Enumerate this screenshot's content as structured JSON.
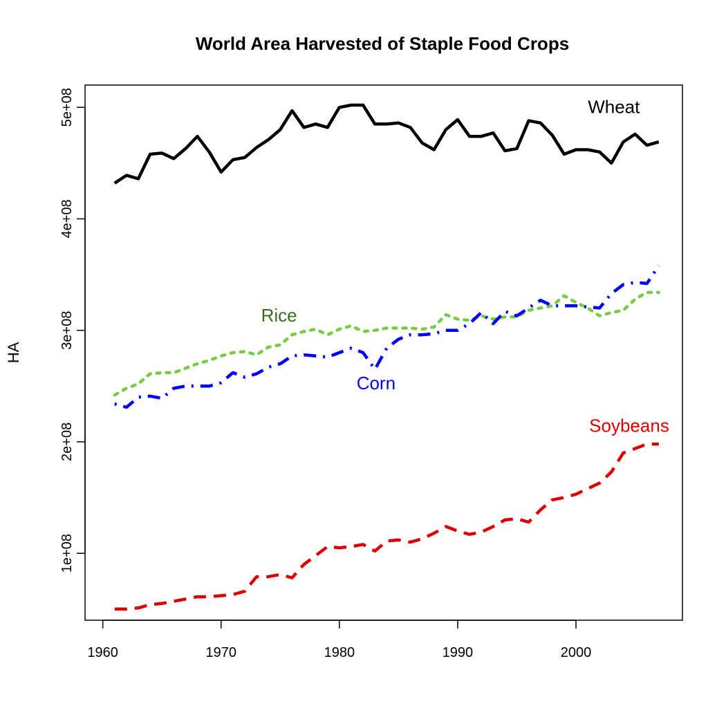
{
  "chart_data": {
    "type": "line",
    "title": "World Area Harvested of Staple Food Crops",
    "xlabel": "",
    "ylabel": "HA",
    "xlim": [
      1958.5,
      2009
    ],
    "ylim": [
      40000000,
      520000000
    ],
    "xticks": [
      1960,
      1970,
      1980,
      1990,
      2000
    ],
    "xtick_labels": [
      "1960",
      "1970",
      "1980",
      "1990",
      "2000"
    ],
    "yticks": [
      100000000,
      200000000,
      300000000,
      400000000,
      500000000
    ],
    "ytick_labels": [
      "1e+08",
      "2e+08",
      "3e+08",
      "4e+08",
      "5e+08"
    ],
    "grid": false,
    "x": [
      1961,
      1962,
      1963,
      1964,
      1965,
      1966,
      1967,
      1968,
      1969,
      1970,
      1971,
      1972,
      1973,
      1974,
      1975,
      1976,
      1977,
      1978,
      1979,
      1980,
      1981,
      1982,
      1983,
      1984,
      1985,
      1986,
      1987,
      1988,
      1989,
      1990,
      1991,
      1992,
      1993,
      1994,
      1995,
      1996,
      1997,
      1998,
      1999,
      2000,
      2001,
      2002,
      2003,
      2004,
      2005,
      2006,
      2007
    ],
    "series": [
      {
        "name": "Wheat",
        "label": "Wheat",
        "color": "#000000",
        "dash": "solid",
        "label_x": 2003.2,
        "label_y": 495000000,
        "values": [
          432000000,
          439000000,
          436000000,
          458000000,
          459000000,
          454000000,
          463000000,
          474000000,
          460000000,
          442000000,
          453000000,
          455000000,
          464000000,
          471000000,
          480000000,
          497000000,
          482000000,
          485000000,
          482000000,
          500000000,
          502000000,
          502000000,
          485000000,
          485000000,
          486000000,
          482000000,
          468000000,
          462000000,
          480000000,
          489000000,
          474000000,
          474000000,
          477000000,
          461000000,
          463000000,
          488000000,
          486000000,
          475000000,
          458000000,
          462000000,
          462000000,
          460000000,
          450000000,
          469000000,
          476000000,
          466000000,
          469000000
        ]
      },
      {
        "name": "Rice",
        "label": "Rice",
        "color": "#77CC44",
        "label_color": "#3D6B1F",
        "dash": "dotted",
        "label_x": 1974.9,
        "label_y": 308000000,
        "values": [
          242000000,
          248000000,
          252000000,
          261000000,
          262000000,
          262000000,
          266000000,
          270000000,
          273000000,
          277000000,
          280000000,
          281000000,
          278000000,
          285000000,
          287000000,
          296000000,
          299000000,
          301000000,
          296000000,
          301000000,
          304000000,
          299000000,
          300000000,
          302000000,
          302000000,
          302000000,
          301000000,
          303000000,
          314000000,
          310000000,
          309000000,
          313000000,
          310000000,
          312000000,
          312000000,
          318000000,
          320000000,
          322000000,
          331000000,
          325000000,
          320000000,
          313000000,
          316000000,
          318000000,
          328000000,
          334000000,
          334000000
        ]
      },
      {
        "name": "Corn",
        "label": "Corn",
        "color": "#0000FF",
        "label_color": "#0000FF",
        "dash": "dashdot",
        "label_x": 1983.1,
        "label_y": 247000000,
        "values": [
          234000000,
          231000000,
          240000000,
          241000000,
          239000000,
          248000000,
          250000000,
          250000000,
          250000000,
          253000000,
          262000000,
          258000000,
          261000000,
          267000000,
          270000000,
          277000000,
          278000000,
          277000000,
          276000000,
          280000000,
          284000000,
          280000000,
          265000000,
          284000000,
          292000000,
          296000000,
          296000000,
          297000000,
          300000000,
          300000000,
          306000000,
          316000000,
          306000000,
          317000000,
          313000000,
          320000000,
          327000000,
          322000000,
          322000000,
          322000000,
          321000000,
          320000000,
          333000000,
          341000000,
          343000000,
          342000000,
          358000000
        ]
      },
      {
        "name": "Soybeans",
        "label": "Soybeans",
        "color": "#DD0000",
        "label_color": "#DD0000",
        "dash": "dashed",
        "label_x": 2004.5,
        "label_y": 209000000,
        "values": [
          50000000,
          50000000,
          51000000,
          54000000,
          55000000,
          57000000,
          59000000,
          61000000,
          61000000,
          62000000,
          63000000,
          66000000,
          79000000,
          79000000,
          81000000,
          78000000,
          90000000,
          98000000,
          106000000,
          105000000,
          106000000,
          108000000,
          102000000,
          111000000,
          112000000,
          110000000,
          113000000,
          118000000,
          124000000,
          120000000,
          117000000,
          119000000,
          124000000,
          130000000,
          131000000,
          128000000,
          139000000,
          148000000,
          150000000,
          153000000,
          158000000,
          163000000,
          173000000,
          190000000,
          194000000,
          198000000,
          198000000
        ]
      }
    ]
  }
}
